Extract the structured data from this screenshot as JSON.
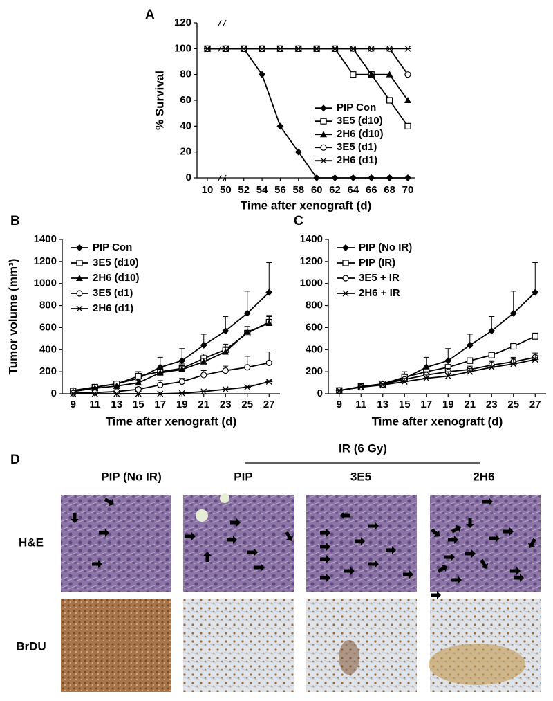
{
  "chart_data": [
    {
      "type": "line",
      "title": "A",
      "x_label": "Time after xenograft (d)",
      "y_label": "% Survival",
      "categories": [
        "10",
        "50",
        "52",
        "54",
        "56",
        "58",
        "60",
        "62",
        "64",
        "66",
        "68",
        "70"
      ],
      "ylim": [
        0,
        120
      ],
      "yticks": [
        0,
        20,
        40,
        60,
        80,
        100,
        120
      ],
      "legend": "center right",
      "series": [
        {
          "name": "PIP Con",
          "color": "#000000",
          "marker": "diamond",
          "values": [
            100,
            100,
            100,
            80,
            40,
            20,
            0,
            0,
            0,
            0,
            0,
            0
          ]
        },
        {
          "name": "3E5 (d10)",
          "color": "#000000",
          "marker": "square-open",
          "values": [
            100,
            100,
            100,
            100,
            100,
            100,
            100,
            100,
            80,
            80,
            60,
            40
          ]
        },
        {
          "name": "2H6 (d10)",
          "color": "#000000",
          "marker": "triangle",
          "values": [
            100,
            100,
            100,
            100,
            100,
            100,
            100,
            100,
            100,
            80,
            80,
            60
          ]
        },
        {
          "name": "3E5 (d1)",
          "color": "#000000",
          "marker": "circle-open",
          "values": [
            100,
            100,
            100,
            100,
            100,
            100,
            100,
            100,
            100,
            100,
            100,
            80
          ]
        },
        {
          "name": "2H6 (d1)",
          "color": "#000000",
          "marker": "star",
          "values": [
            100,
            100,
            100,
            100,
            100,
            100,
            100,
            100,
            100,
            100,
            100,
            100
          ]
        }
      ]
    },
    {
      "type": "line",
      "title": "B",
      "x_label": "Time after xenograft (d)",
      "y_label": "Tumor volume (mm³)",
      "x": [
        9,
        11,
        13,
        15,
        17,
        19,
        21,
        23,
        25,
        27
      ],
      "xlim": [
        8,
        28
      ],
      "xticks": [
        9,
        11,
        13,
        15,
        17,
        19,
        21,
        23,
        25,
        27
      ],
      "ylim": [
        0,
        1400
      ],
      "yticks": [
        0,
        200,
        400,
        600,
        800,
        1000,
        1200,
        1400
      ],
      "legend": "upper left",
      "series": [
        {
          "name": "PIP Con",
          "color": "#000000",
          "marker": "diamond",
          "values": [
            30,
            60,
            90,
            140,
            240,
            300,
            440,
            570,
            730,
            920
          ],
          "errors": [
            10,
            15,
            15,
            60,
            90,
            110,
            100,
            130,
            200,
            270
          ]
        },
        {
          "name": "3E5 (d10)",
          "color": "#000000",
          "marker": "square-open",
          "values": [
            25,
            60,
            90,
            160,
            200,
            230,
            320,
            400,
            550,
            650
          ],
          "errors": [
            5,
            10,
            15,
            40,
            30,
            40,
            40,
            50,
            60,
            60
          ]
        },
        {
          "name": "2H6 (d10)",
          "color": "#000000",
          "marker": "triangle",
          "values": [
            20,
            50,
            70,
            100,
            190,
            220,
            290,
            380,
            560,
            640
          ],
          "errors": [
            5,
            10,
            10,
            20,
            30,
            30,
            30,
            40,
            50,
            60
          ]
        },
        {
          "name": "3E5 (d1)",
          "color": "#000000",
          "marker": "circle-open",
          "values": [
            5,
            10,
            20,
            40,
            80,
            110,
            170,
            210,
            240,
            280
          ],
          "errors": [
            5,
            5,
            10,
            20,
            40,
            30,
            40,
            40,
            100,
            100
          ]
        },
        {
          "name": "2H6 (d1)",
          "color": "#000000",
          "marker": "star",
          "values": [
            0,
            0,
            0,
            0,
            0,
            5,
            20,
            40,
            60,
            110
          ],
          "errors": [
            0,
            0,
            0,
            0,
            0,
            5,
            5,
            5,
            5,
            10
          ]
        }
      ]
    },
    {
      "type": "line",
      "title": "C",
      "x_label": "Time after xenograft (d)",
      "x": [
        9,
        11,
        13,
        15,
        17,
        19,
        21,
        23,
        25,
        27
      ],
      "xlim": [
        8,
        28
      ],
      "xticks": [
        9,
        11,
        13,
        15,
        17,
        19,
        21,
        23,
        25,
        27
      ],
      "ylim": [
        0,
        1400
      ],
      "yticks": [
        0,
        200,
        400,
        600,
        800,
        1000,
        1200,
        1400
      ],
      "legend": "upper left",
      "series": [
        {
          "name": "PIP (No IR)",
          "color": "#000000",
          "marker": "diamond",
          "values": [
            30,
            60,
            90,
            140,
            240,
            300,
            440,
            570,
            730,
            920
          ],
          "errors": [
            10,
            15,
            15,
            60,
            90,
            110,
            100,
            130,
            200,
            270
          ]
        },
        {
          "name": "PIP (IR)",
          "color": "#000000",
          "marker": "square-open",
          "values": [
            30,
            65,
            90,
            150,
            200,
            240,
            300,
            350,
            430,
            520
          ],
          "errors": [
            5,
            10,
            10,
            30,
            20,
            20,
            20,
            20,
            30,
            30
          ]
        },
        {
          "name": "3E5 + IR",
          "color": "#000000",
          "marker": "circle-open",
          "values": [
            30,
            60,
            85,
            130,
            170,
            200,
            220,
            260,
            290,
            330
          ],
          "errors": [
            5,
            10,
            10,
            30,
            30,
            30,
            30,
            40,
            40,
            40
          ]
        },
        {
          "name": "2H6 + IR",
          "color": "#000000",
          "marker": "star",
          "values": [
            30,
            60,
            80,
            110,
            140,
            160,
            200,
            240,
            270,
            310
          ],
          "errors": [
            5,
            10,
            10,
            30,
            30,
            40,
            30,
            50,
            50,
            50
          ]
        }
      ]
    }
  ],
  "panel_d": {
    "title": "D",
    "group_label": "IR (6 Gy)",
    "columns": [
      "PIP (No IR)",
      "PIP",
      "3E5",
      "2H6"
    ],
    "rows": [
      "H&E",
      "BrDU"
    ]
  }
}
